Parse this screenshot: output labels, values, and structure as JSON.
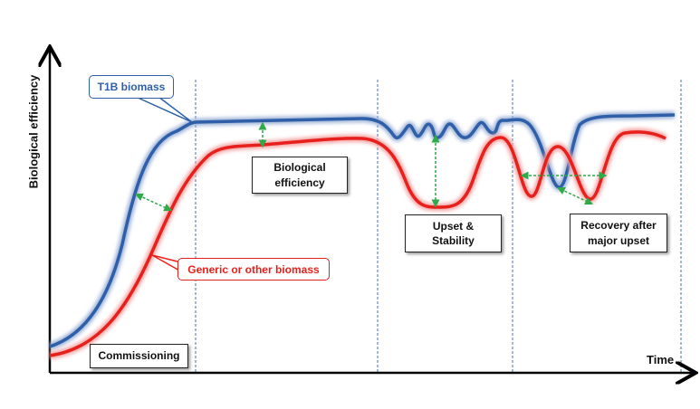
{
  "axes": {
    "y_label": "Biological efficiency",
    "x_label": "Time"
  },
  "series": [
    {
      "name": "T1B biomass",
      "color": "#2e5fa8"
    },
    {
      "name": "Generic or other biomass",
      "color": "#e8201c"
    }
  ],
  "phases": [
    {
      "label": "Commissioning"
    },
    {
      "label": "Biological efficiency"
    },
    {
      "label": "Upset & Stability"
    },
    {
      "label": "Recovery after major upset"
    }
  ],
  "arrow_color": "#2eaa4a"
}
